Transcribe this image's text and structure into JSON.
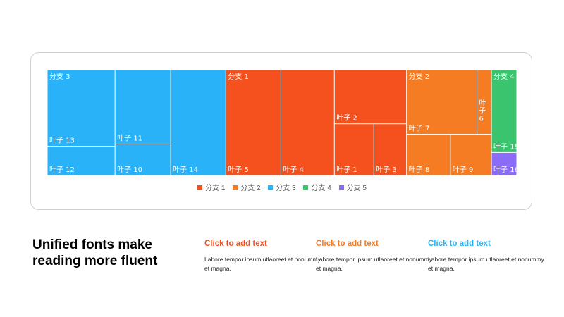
{
  "chart_data": {
    "type": "treemap",
    "legend": [
      {
        "label": "分支 1",
        "color": "#F4511E"
      },
      {
        "label": "分支 2",
        "color": "#F57C22"
      },
      {
        "label": "分支 3",
        "color": "#29B2F8"
      },
      {
        "label": "分支 4",
        "color": "#3AC46D"
      },
      {
        "label": "分支 5",
        "color": "#8B6CF6"
      }
    ],
    "branches": [
      {
        "name": "分支 3",
        "color": "#29B2F8",
        "leaves": [
          {
            "name": "叶子 13",
            "value": 89
          },
          {
            "name": "叶子 12",
            "value": 34
          },
          {
            "name": "叶子 11",
            "value": 71
          },
          {
            "name": "叶子 10",
            "value": 30
          },
          {
            "name": "叶子 14",
            "value": 100
          }
        ]
      },
      {
        "name": "分支 1",
        "color": "#F4511E",
        "leaves": [
          {
            "name": "叶子 5",
            "value": 100
          },
          {
            "name": "叶子 4",
            "value": 97
          },
          {
            "name": "叶子 2",
            "value": 67
          },
          {
            "name": "叶子 1",
            "value": 35
          },
          {
            "name": "叶子 3",
            "value": 29
          }
        ]
      },
      {
        "name": "分支 2",
        "color": "#F57C22",
        "leaves": [
          {
            "name": "叶子 7",
            "value": 78
          },
          {
            "name": "叶子 6",
            "value": 16
          },
          {
            "name": "叶子 8",
            "value": 31
          },
          {
            "name": "叶子 9",
            "value": 29
          }
        ]
      },
      {
        "name": "分支 4",
        "color": "#3AC46D",
        "leaves": [
          {
            "name": "叶子 15",
            "value": 36
          }
        ]
      },
      {
        "name": "分支 5",
        "color": "#8B6CF6",
        "leaves": [
          {
            "name": "叶子 16",
            "value": 10
          }
        ]
      }
    ]
  },
  "headline": {
    "line1": "Unified fonts make",
    "line2": "reading more fluent"
  },
  "columns": [
    {
      "title": "Click to add text",
      "color": "#F4511E",
      "body": "Labore tempor ipsum utlaoreet et nonummy  et magna."
    },
    {
      "title": "Click to add text",
      "color": "#F57C22",
      "body": "Labore tempor ipsum utlaoreet et nonummy  et magna."
    },
    {
      "title": "Click to add text",
      "color": "#29B2F8",
      "body": "Labore tempor ipsum utlaoreet et nonummy  et magna."
    }
  ]
}
